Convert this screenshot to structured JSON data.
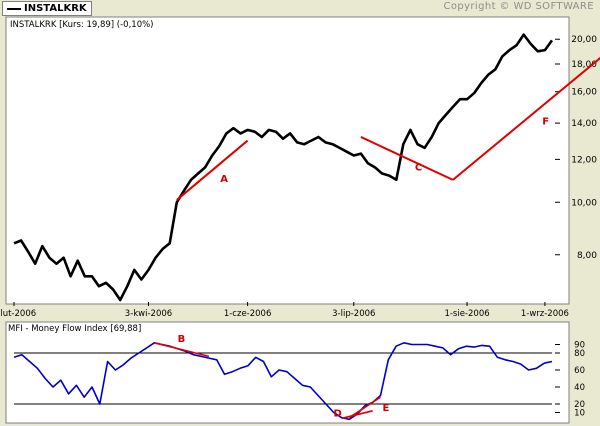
{
  "ticker": "INSTALKRK",
  "copyright": "Copyright © WD SOFTWARE",
  "colors": {
    "background": "#E9E9D2",
    "plot_bg": "#FFFFFF",
    "price_line": "#000000",
    "trend_line": "#E00000",
    "mfi_line": "#0000CC",
    "label": "#D00000"
  },
  "chart_data": [
    {
      "type": "line",
      "title": "INSTALKRK [Kurs: 19,89] (-0,10%)",
      "series": [
        {
          "name": "INSTALKRK",
          "values": [
            8.4,
            8.5,
            8.1,
            7.7,
            8.3,
            7.9,
            7.7,
            7.9,
            7.3,
            7.8,
            7.3,
            7.3,
            7.0,
            7.1,
            6.9,
            6.6,
            7.0,
            7.5,
            7.2,
            7.5,
            7.9,
            8.2,
            8.4,
            10.0,
            10.5,
            11.0,
            11.3,
            11.6,
            12.2,
            12.7,
            13.4,
            13.7,
            13.4,
            13.6,
            13.5,
            13.2,
            13.6,
            13.5,
            13.1,
            13.4,
            12.9,
            12.8,
            13.0,
            13.2,
            12.9,
            12.8,
            12.6,
            12.4,
            12.2,
            12.3,
            11.8,
            11.6,
            11.3,
            11.2,
            11.0,
            12.8,
            13.6,
            12.8,
            12.6,
            13.2,
            14.0,
            14.5,
            15.0,
            15.5,
            15.5,
            15.9,
            16.6,
            17.2,
            17.6,
            18.6,
            19.1,
            19.5,
            20.4,
            19.6,
            19.0,
            19.1,
            19.9
          ]
        }
      ],
      "y_ticks": [
        "8,00",
        "10,00",
        "12,00",
        "14,00",
        "16,00",
        "18,00",
        "20,00"
      ],
      "y_tick_values": [
        8,
        10,
        12,
        14,
        16,
        18,
        20
      ],
      "ylim": [
        6.6,
        20.8
      ],
      "yscale": "log",
      "x_tick_labels": [
        "1-lut-2006",
        "3-kwi-2006",
        "1-cze-2006",
        "3-lip-2006",
        "1-sie-2006",
        "1-wrz-2006"
      ],
      "x_tick_index": [
        0,
        19,
        33,
        48,
        64,
        75
      ],
      "trendlines": [
        {
          "label": "A",
          "from": {
            "i": 23,
            "y": 10.1
          },
          "to": {
            "i": 33,
            "y": 13.0
          }
        },
        {
          "label": "C",
          "from": {
            "i": 49,
            "y": 13.2
          },
          "to": {
            "i": 62,
            "y": 11.0
          }
        },
        {
          "label": "F",
          "from": {
            "i": 62,
            "y": 11.0
          },
          "to": {
            "i": 85,
            "y": 19.5
          }
        }
      ],
      "grid": false
    },
    {
      "type": "line",
      "title": "MFI - Money Flow Index [69,88]",
      "series": [
        {
          "name": "MFI - Money Flow Index",
          "values": [
            75,
            78,
            70,
            62,
            50,
            40,
            48,
            32,
            42,
            28,
            40,
            20,
            70,
            60,
            66,
            74,
            80,
            86,
            92,
            90,
            88,
            85,
            82,
            78,
            76,
            74,
            72,
            55,
            58,
            62,
            65,
            75,
            70,
            52,
            60,
            58,
            50,
            42,
            40,
            30,
            20,
            10,
            4,
            2,
            8,
            18,
            22,
            30,
            72,
            88,
            92,
            90,
            90,
            90,
            88,
            86,
            78,
            85,
            88,
            87,
            89,
            88,
            75,
            72,
            70,
            67,
            60,
            62,
            68,
            70
          ]
        }
      ],
      "y_ticks": [
        "10",
        "20",
        "40",
        "60",
        "80",
        "90"
      ],
      "y_tick_values": [
        10,
        20,
        40,
        60,
        80,
        90
      ],
      "ylim": [
        0,
        100
      ],
      "levels": [
        20,
        80
      ],
      "trendlines": [
        {
          "label": "B",
          "from": {
            "i": 18,
            "y": 92
          },
          "to": {
            "i": 25,
            "y": 76
          }
        },
        {
          "label": "D",
          "from": {
            "i": 42,
            "y": 3
          },
          "to": {
            "i": 46,
            "y": 12
          }
        },
        {
          "label": "E",
          "from": {
            "i": 43,
            "y": 4
          },
          "to": {
            "i": 47,
            "y": 28
          }
        }
      ]
    }
  ]
}
